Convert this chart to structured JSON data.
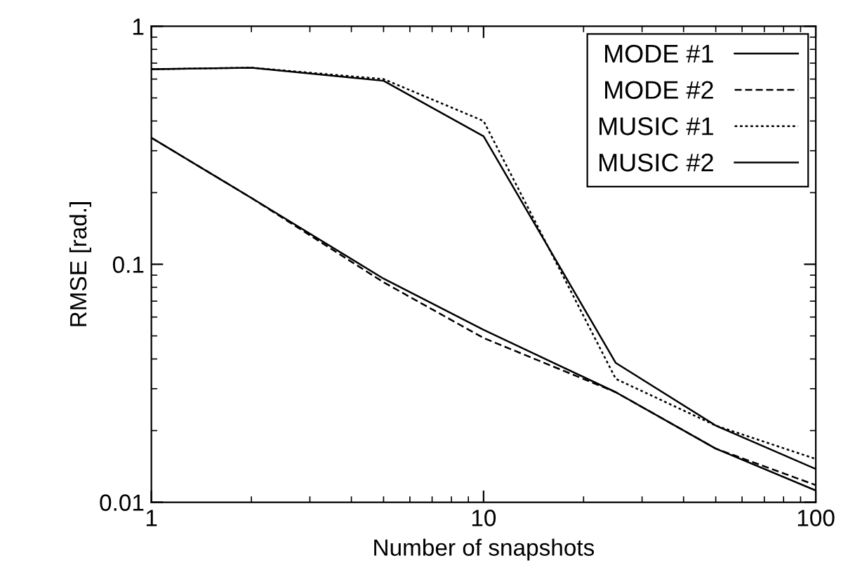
{
  "chart_data": {
    "type": "line",
    "xlabel": "Number of snapshots",
    "ylabel": "RMSE [rad.]",
    "log": "xy",
    "x": [
      1,
      2,
      5,
      10,
      25,
      50,
      100
    ],
    "xlim": [
      1,
      100
    ],
    "xticks": [
      1,
      10,
      100
    ],
    "ylim": [
      0.01,
      1
    ],
    "yticks": [
      0.01,
      0.1,
      1
    ],
    "grid": false,
    "legend": "top right",
    "marker": "none",
    "series": [
      {
        "name": "MODE #1",
        "color": "#000000",
        "line_style": "solid",
        "values": [
          0.34,
          0.19,
          0.087,
          0.053,
          0.029,
          0.0168,
          0.0112
        ]
      },
      {
        "name": "MODE #2",
        "color": "#000000",
        "line_style": "dashed",
        "values": [
          0.34,
          0.19,
          0.084,
          0.049,
          0.029,
          0.0168,
          0.0118
        ]
      },
      {
        "name": "MUSIC #1",
        "color": "#000000",
        "line_style": "dotted",
        "values": [
          0.66,
          0.67,
          0.6,
          0.4,
          0.033,
          0.021,
          0.0152
        ]
      },
      {
        "name": "MUSIC #2",
        "color": "#000000",
        "line_style": "solid",
        "values": [
          0.66,
          0.67,
          0.59,
          0.345,
          0.0385,
          0.021,
          0.0138
        ]
      }
    ]
  }
}
